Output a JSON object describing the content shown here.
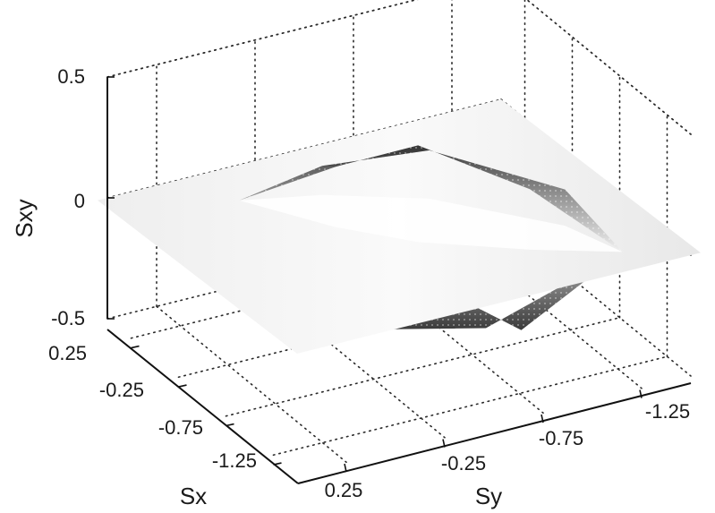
{
  "chart_data": {
    "type": "surface3d",
    "title": "",
    "xlabel": "Sx",
    "ylabel": "Sy",
    "zlabel": "Sxy",
    "x_ticks": [
      "0.25",
      "-0.25",
      "-0.75",
      "-1.25"
    ],
    "y_ticks": [
      "0.25",
      "-0.25",
      "-0.75",
      "-1.25"
    ],
    "z_ticks": [
      "0.5",
      "0",
      "-0.5"
    ],
    "xlim": [
      -1.5,
      0.5
    ],
    "ylim": [
      -1.5,
      0.5
    ],
    "zlim": [
      -0.5,
      0.5
    ],
    "grid": true,
    "surfaces": [
      {
        "part": "upper",
        "vertices_xyz": [
          [
            0.15,
            0.0,
            0.0
          ],
          [
            -0.35,
            -0.25,
            0.25
          ],
          [
            -0.7,
            -0.5,
            0.4
          ],
          [
            -1.05,
            -0.9,
            0.25
          ],
          [
            -1.3,
            -1.25,
            0.0
          ],
          [
            -0.9,
            -1.15,
            0.15
          ],
          [
            -0.3,
            -0.75,
            0.2
          ],
          [
            0.0,
            -0.35,
            0.12
          ]
        ]
      },
      {
        "part": "lower",
        "vertices_xyz": [
          [
            0.15,
            0.0,
            0.0
          ],
          [
            0.0,
            -0.35,
            -0.15
          ],
          [
            -0.3,
            -0.75,
            -0.35
          ],
          [
            -0.75,
            -1.0,
            -0.45
          ],
          [
            -1.3,
            -1.25,
            0.0
          ],
          [
            -1.0,
            -0.7,
            -0.3
          ],
          [
            -0.55,
            -0.2,
            -0.35
          ]
        ]
      }
    ],
    "plane_z": 0,
    "colormap": [
      "#3c3c3c",
      "#ffffff"
    ]
  }
}
